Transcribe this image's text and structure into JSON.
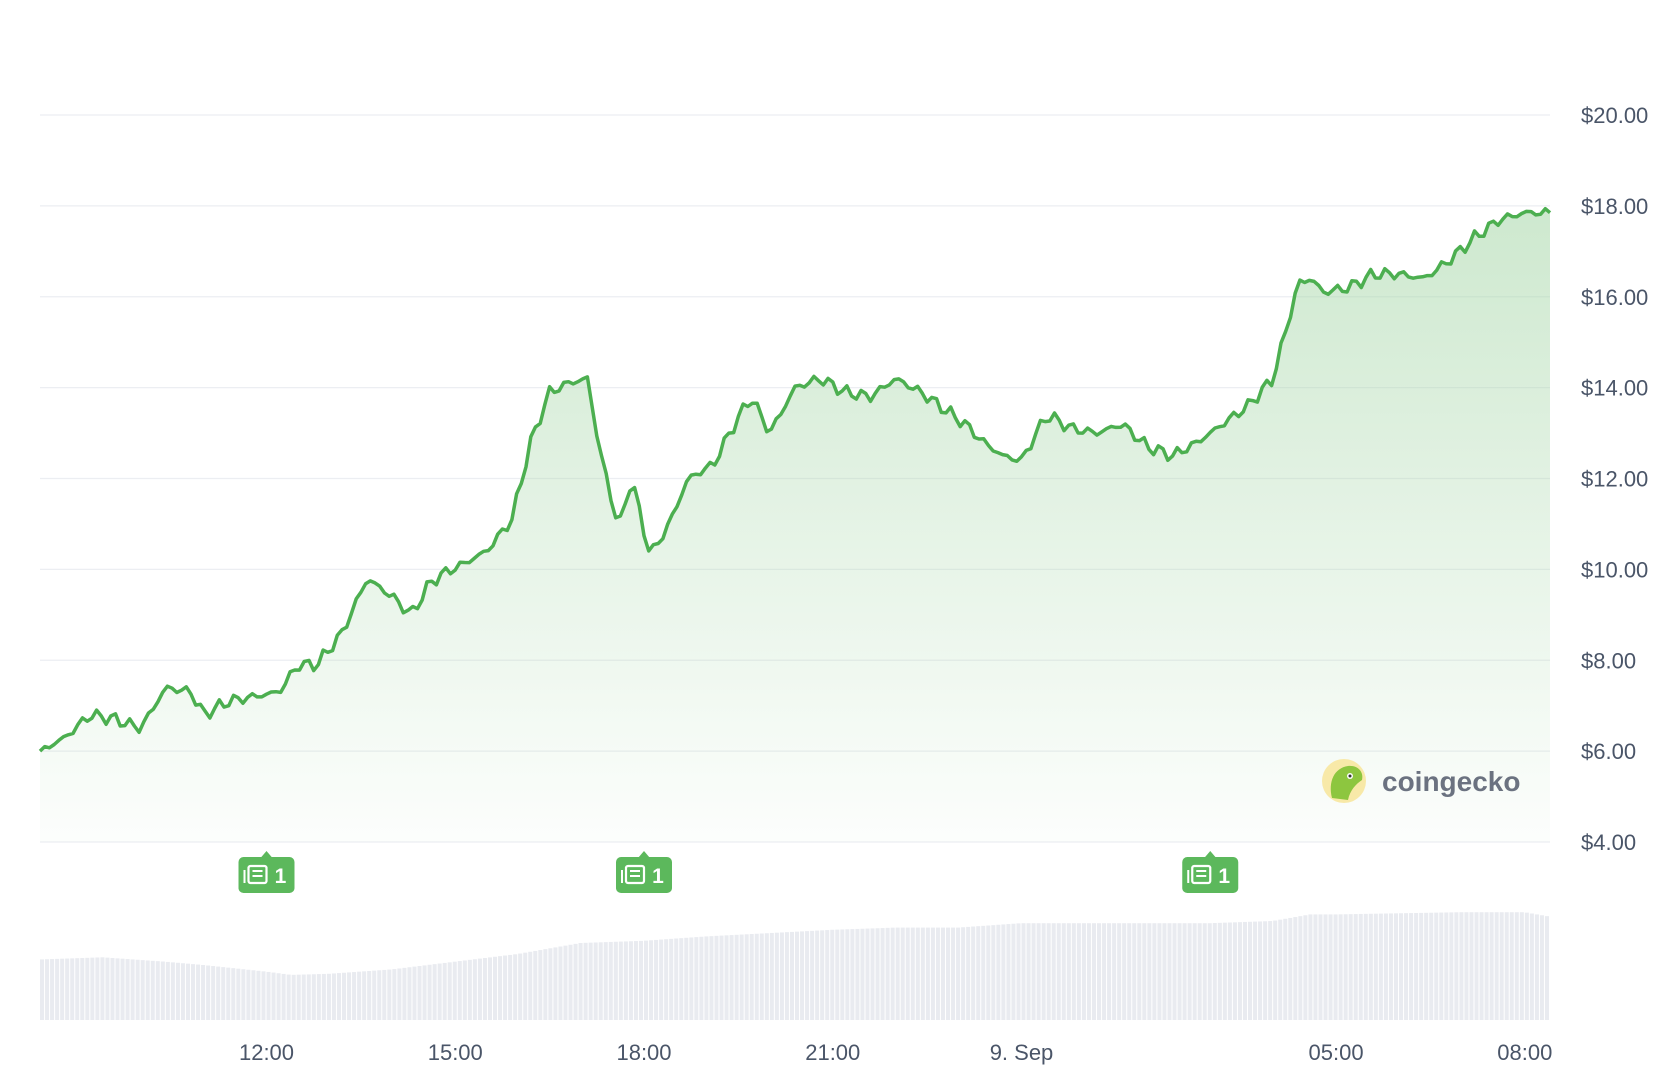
{
  "colors": {
    "line": "#4caf50",
    "fill_top": "#a5d6a7",
    "grid": "#eceef2",
    "volume": "#e9ebf0",
    "news_badge": "#5cb85c",
    "axis_text": "#4a5568"
  },
  "brand": {
    "name": "coingecko",
    "icon": "gecko-logo-icon"
  },
  "chart_data": {
    "type": "area",
    "xlabel": "",
    "ylabel": "",
    "ylim": [
      4,
      20
    ],
    "grid": true,
    "y_ticks": [
      "$20.00",
      "$18.00",
      "$16.00",
      "$14.00",
      "$12.00",
      "$10.00",
      "$8.00",
      "$6.00",
      "$4.00"
    ],
    "y_tick_values": [
      20,
      18,
      16,
      14,
      12,
      10,
      8,
      6,
      4
    ],
    "x_ticks": [
      "12:00",
      "15:00",
      "18:00",
      "21:00",
      "9. Sep",
      "05:00",
      "08:00"
    ],
    "x_tick_hours": [
      12,
      15,
      18,
      21,
      24,
      29,
      32
    ],
    "x_range_hours": [
      8.4,
      32.4
    ],
    "series": [
      {
        "hours": [
          8.4,
          8.8,
          9.2,
          9.6,
          10.0,
          10.4,
          10.8,
          11.0,
          11.4,
          11.8,
          12.2,
          12.5,
          12.8,
          13.2,
          13.6,
          14.0,
          14.3,
          14.6,
          14.8,
          15.1,
          15.5,
          15.9,
          16.2,
          16.5,
          16.8,
          17.1,
          17.3,
          17.6,
          17.8,
          18.1,
          18.4,
          18.7,
          19.1,
          19.4,
          19.7,
          20.0,
          20.4,
          20.8,
          21.2,
          21.6,
          22.0,
          22.4,
          22.8,
          23.1,
          23.4,
          23.7,
          24.0,
          24.4,
          24.8,
          25.2,
          25.6,
          26.0,
          26.4,
          26.8,
          27.2,
          27.6,
          28.0,
          28.4,
          28.6,
          28.8,
          29.2,
          29.6,
          30.0,
          30.4,
          30.8,
          31.2,
          31.6,
          32.0,
          32.4
        ],
        "values": [
          6.0,
          6.3,
          6.8,
          6.7,
          6.5,
          7.4,
          7.3,
          6.8,
          7.1,
          7.2,
          7.3,
          7.9,
          7.9,
          8.6,
          9.8,
          9.4,
          9.0,
          9.7,
          9.9,
          10.1,
          10.4,
          11.1,
          12.8,
          13.9,
          14.1,
          14.2,
          12.6,
          10.9,
          12.0,
          10.3,
          11.0,
          12.0,
          12.3,
          13.1,
          13.8,
          13.0,
          14.0,
          14.2,
          13.9,
          13.8,
          14.2,
          13.9,
          13.5,
          13.2,
          12.8,
          12.5,
          12.4,
          13.4,
          13.1,
          13.0,
          13.2,
          12.7,
          12.5,
          12.8,
          13.2,
          13.6,
          14.2,
          16.3,
          16.4,
          16.1,
          16.2,
          16.5,
          16.5,
          16.4,
          16.8,
          17.3,
          17.7,
          17.85,
          17.85
        ]
      }
    ],
    "volume_hours": [
      8.4,
      9.4,
      10.4,
      11.0,
      12.0,
      12.4,
      13.0,
      14.0,
      15.0,
      16.0,
      17.0,
      18.0,
      19.0,
      20.0,
      21.0,
      22.0,
      23.0,
      24.0,
      25.0,
      26.0,
      27.0,
      28.0,
      28.6,
      29.0,
      30.0,
      31.0,
      32.0,
      32.4
    ],
    "volume_levels": [
      0.55,
      0.57,
      0.53,
      0.5,
      0.44,
      0.41,
      0.42,
      0.46,
      0.53,
      0.6,
      0.7,
      0.72,
      0.76,
      0.79,
      0.82,
      0.84,
      0.84,
      0.88,
      0.88,
      0.88,
      0.88,
      0.9,
      0.96,
      0.96,
      0.97,
      0.98,
      0.98,
      0.94
    ],
    "news_markers": [
      {
        "hour": 12.0,
        "label": "1"
      },
      {
        "hour": 18.0,
        "label": "1"
      },
      {
        "hour": 27.0,
        "label": "1"
      }
    ]
  }
}
